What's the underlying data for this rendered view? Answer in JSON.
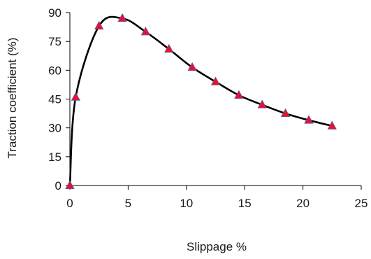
{
  "chart_data": {
    "type": "line",
    "xlabel": "Slippage %",
    "ylabel": "Traction coefficient (%)",
    "xlim": [
      0,
      25
    ],
    "ylim": [
      0,
      90
    ],
    "x_ticks": [
      0,
      5,
      10,
      15,
      20,
      25
    ],
    "y_ticks": [
      0,
      15,
      30,
      45,
      60,
      75,
      90
    ],
    "grid": false,
    "legend": "none",
    "series": [
      {
        "x": [
          0,
          0.5,
          2.5,
          4.5,
          6.5,
          8.5,
          10.5,
          12.5,
          14.5,
          16.5,
          18.5,
          20.5,
          22.5
        ],
        "y": [
          0,
          46,
          83,
          87,
          80,
          71,
          61.5,
          54,
          47,
          42,
          37.5,
          34,
          31
        ]
      }
    ],
    "colors": {
      "line": "#000000",
      "marker_fill": "#e8112d",
      "marker_stroke": "#5b5ea6",
      "axis": "#000000"
    }
  }
}
